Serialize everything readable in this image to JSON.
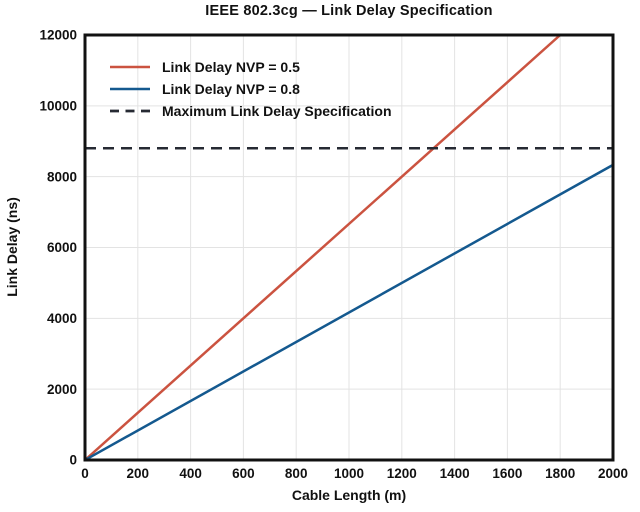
{
  "chart_data": {
    "type": "line",
    "title": "IEEE 802.3cg — Link Delay Specification",
    "xlabel": "Cable Length (m)",
    "ylabel": "Link Delay (ns)",
    "xlim": [
      0,
      2000
    ],
    "ylim": [
      0,
      12000
    ],
    "xticks": [
      0,
      200,
      400,
      600,
      800,
      1000,
      1200,
      1400,
      1600,
      1800,
      2000
    ],
    "yticks": [
      0,
      2000,
      4000,
      6000,
      8000,
      10000,
      12000
    ],
    "grid": true,
    "grid_color": "#e3e3e3",
    "axis_color": "#111111",
    "background": "#ffffff",
    "legend_position": "upper left inside",
    "series": [
      {
        "name": "Link Delay NVP = 0.5",
        "color": "#cb5340",
        "style": "solid",
        "x": [
          0,
          1800
        ],
        "y": [
          0,
          12000
        ]
      },
      {
        "name": "Link Delay NVP = 0.8",
        "color": "#14598f",
        "style": "solid",
        "x": [
          0,
          2000
        ],
        "y": [
          0,
          8333
        ]
      },
      {
        "name": "Maximum Link Delay Specification",
        "color": "#262a33",
        "style": "dashed",
        "x": [
          0,
          2000
        ],
        "y": [
          8800,
          8800
        ]
      }
    ]
  }
}
